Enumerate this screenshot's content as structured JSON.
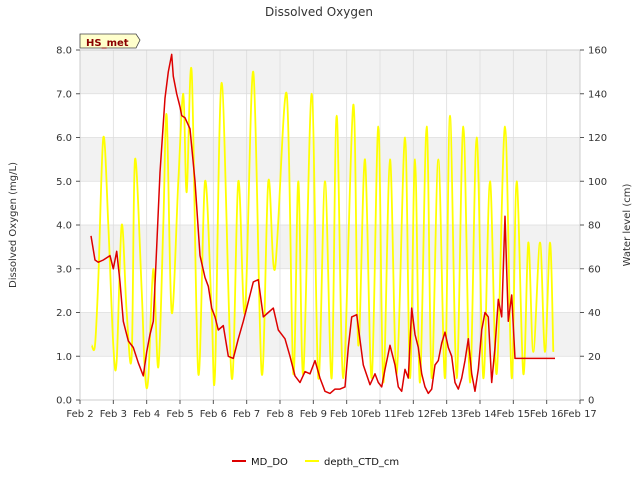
{
  "chart_data": {
    "type": "line",
    "title": "Dissolved Oxygen",
    "site_label": "HS_met",
    "ylabel": "Dissolved Oxygen (mg/L)",
    "y2label": "Water level (cm)",
    "xlabel": "",
    "x_ticks": [
      "Feb 2",
      "Feb 3",
      "Feb 4",
      "Feb 5",
      "Feb 6",
      "Feb 7",
      "Feb 8",
      "Feb 9",
      "Feb 10",
      "Feb 11",
      "Feb 12",
      "Feb 13",
      "Feb 14",
      "Feb 15",
      "Feb 16",
      "Feb 17"
    ],
    "xlim": [
      2,
      17
    ],
    "ylim": [
      0,
      8
    ],
    "y_ticks": [
      "0.0",
      "1.0",
      "2.0",
      "3.0",
      "4.0",
      "5.0",
      "6.0",
      "7.0",
      "8.0"
    ],
    "y2lim": [
      0,
      160
    ],
    "y2_ticks": [
      "0",
      "20",
      "40",
      "60",
      "80",
      "100",
      "120",
      "140",
      "160"
    ],
    "grid": true,
    "legend_position": "bottom",
    "colors": {
      "MD_DO": "#dd0000",
      "depth_CTD_cm": "#ffff00"
    },
    "series": [
      {
        "name": "MD_DO",
        "axis": "left",
        "x": [
          2.33,
          2.45,
          2.55,
          2.7,
          2.9,
          3.0,
          3.1,
          3.2,
          3.3,
          3.45,
          3.6,
          3.75,
          3.9,
          4.0,
          4.1,
          4.2,
          4.3,
          4.4,
          4.55,
          4.65,
          4.75,
          4.8,
          4.9,
          5.0,
          5.05,
          5.15,
          5.3,
          5.45,
          5.6,
          5.75,
          5.85,
          5.95,
          6.05,
          6.15,
          6.3,
          6.45,
          6.6,
          6.75,
          6.9,
          7.0,
          7.1,
          7.2,
          7.35,
          7.5,
          7.65,
          7.8,
          7.95,
          8.05,
          8.15,
          8.3,
          8.45,
          8.6,
          8.75,
          8.9,
          9.05,
          9.2,
          9.35,
          9.5,
          9.65,
          9.8,
          9.95,
          10.05,
          10.15,
          10.3,
          10.5,
          10.7,
          10.85,
          10.95,
          11.05,
          11.15,
          11.3,
          11.45,
          11.55,
          11.65,
          11.75,
          11.85,
          11.95,
          12.05,
          12.15,
          12.25,
          12.35,
          12.45,
          12.55,
          12.65,
          12.75,
          12.85,
          12.95,
          13.05,
          13.15,
          13.25,
          13.35,
          13.45,
          13.55,
          13.65,
          13.75,
          13.85,
          13.95,
          14.05,
          14.15,
          14.25,
          14.35,
          14.45,
          14.55,
          14.65,
          14.75,
          14.85,
          14.95,
          15.05,
          15.15,
          15.25,
          15.35,
          15.45,
          15.55,
          15.65,
          15.75,
          15.85,
          15.95,
          16.05,
          16.15,
          16.25
        ],
        "values": [
          3.75,
          3.2,
          3.15,
          3.2,
          3.3,
          3.0,
          3.4,
          2.7,
          1.8,
          1.35,
          1.2,
          0.85,
          0.55,
          1.1,
          1.5,
          1.8,
          3.5,
          5.2,
          6.9,
          7.5,
          7.9,
          7.4,
          7.0,
          6.7,
          6.5,
          6.45,
          6.2,
          5.0,
          3.3,
          2.8,
          2.6,
          2.1,
          1.9,
          1.6,
          1.7,
          1.0,
          0.95,
          1.4,
          1.8,
          2.1,
          2.4,
          2.7,
          2.75,
          1.9,
          2.0,
          2.1,
          1.6,
          1.5,
          1.4,
          1.0,
          0.55,
          0.4,
          0.65,
          0.6,
          0.9,
          0.5,
          0.2,
          0.15,
          0.25,
          0.25,
          0.3,
          1.2,
          1.9,
          1.95,
          0.8,
          0.35,
          0.6,
          0.4,
          0.3,
          0.7,
          1.25,
          0.8,
          0.3,
          0.2,
          0.7,
          0.5,
          2.1,
          1.5,
          1.2,
          0.6,
          0.3,
          0.15,
          0.25,
          0.8,
          0.9,
          1.3,
          1.55,
          1.2,
          1.0,
          0.4,
          0.25,
          0.5,
          0.9,
          1.4,
          0.6,
          0.2,
          0.7,
          1.6,
          2.0,
          1.9,
          0.4,
          1.2,
          2.3,
          1.9,
          4.2,
          1.8,
          2.4,
          0.95,
          0.95,
          0.95,
          0.95,
          0.95,
          0.95,
          0.95,
          0.95,
          0.95,
          0.95,
          0.95,
          0.95,
          0.95
        ]
      },
      {
        "name": "depth_CTD_cm",
        "axis": "right",
        "x": [
          2.35,
          2.45,
          2.55,
          2.7,
          2.85,
          3.0,
          3.1,
          3.25,
          3.4,
          3.55,
          3.65,
          3.85,
          3.95,
          4.05,
          4.2,
          4.35,
          4.5,
          4.6,
          4.75,
          4.95,
          5.1,
          5.2,
          5.35,
          5.55,
          5.75,
          5.95,
          6.05,
          6.25,
          6.55,
          6.75,
          6.95,
          7.2,
          7.45,
          7.65,
          7.85,
          8.2,
          8.4,
          8.55,
          8.7,
          8.95,
          9.15,
          9.35,
          9.55,
          9.7,
          9.9,
          10.2,
          10.35,
          10.55,
          10.75,
          10.95,
          11.1,
          11.3,
          11.5,
          11.75,
          11.9,
          12.05,
          12.2,
          12.4,
          12.55,
          12.75,
          12.95,
          13.1,
          13.3,
          13.5,
          13.7,
          13.9,
          14.1,
          14.3,
          14.5,
          14.75,
          14.95,
          15.1,
          15.3,
          15.45,
          15.6,
          15.8,
          15.95,
          16.1,
          16.2
        ],
        "values": [
          25,
          25,
          55,
          120,
          80,
          25,
          18,
          80,
          40,
          20,
          110,
          50,
          12,
          10,
          60,
          15,
          80,
          130,
          40,
          100,
          140,
          95,
          150,
          12,
          100,
          40,
          12,
          145,
          10,
          100,
          40,
          150,
          12,
          100,
          60,
          140,
          12,
          100,
          12,
          140,
          10,
          100,
          10,
          130,
          10,
          135,
          25,
          110,
          10,
          125,
          8,
          110,
          12,
          120,
          10,
          110,
          8,
          125,
          10,
          110,
          10,
          130,
          10,
          125,
          8,
          120,
          10,
          100,
          12,
          125,
          10,
          100,
          12,
          72,
          22,
          72,
          22,
          72,
          22
        ]
      }
    ]
  }
}
